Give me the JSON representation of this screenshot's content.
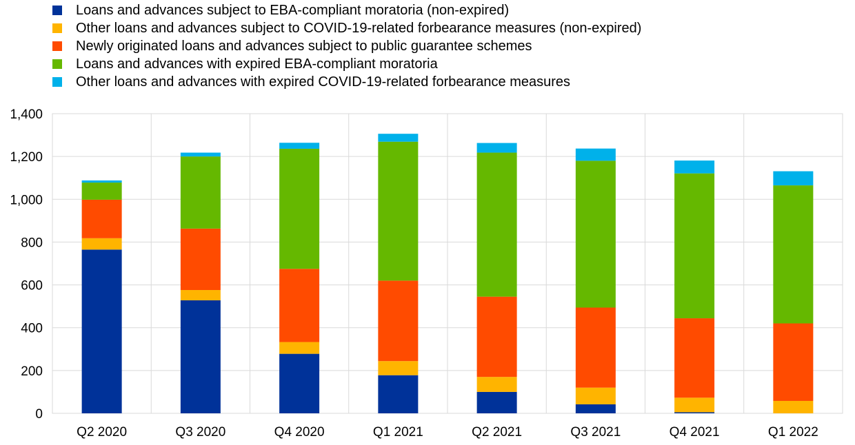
{
  "chart_data": {
    "type": "bar",
    "stacked": true,
    "categories": [
      "Q2 2020",
      "Q3 2020",
      "Q4 2020",
      "Q1 2021",
      "Q2 2021",
      "Q3 2021",
      "Q4 2021",
      "Q1 2022"
    ],
    "series": [
      {
        "name": "Loans and advances subject to EBA-compliant moratoria (non-expired)",
        "color": "#003299",
        "values": [
          765,
          528,
          278,
          178,
          100,
          42,
          5,
          0
        ]
      },
      {
        "name": "Other loans and advances subject to COVID-19-related forbearance measures (non-expired)",
        "color": "#ffb400",
        "values": [
          53,
          48,
          55,
          66,
          70,
          78,
          68,
          58
        ]
      },
      {
        "name": "Newly originated loans and advances subject to public guarantee schemes",
        "color": "#ff4b00",
        "values": [
          180,
          287,
          342,
          376,
          375,
          374,
          371,
          362
        ]
      },
      {
        "name": "Loans and advances with expired EBA-compliant moratoria",
        "color": "#65b800",
        "values": [
          80,
          337,
          561,
          649,
          673,
          686,
          677,
          645
        ]
      },
      {
        "name": "Other loans and advances with expired COVID-19-related forbearance measures",
        "color": "#00b1ea",
        "values": [
          10,
          18,
          28,
          37,
          45,
          57,
          60,
          66
        ]
      }
    ],
    "y_ticks": [
      "0",
      "200",
      "400",
      "600",
      "800",
      "1,000",
      "1,200",
      "1,400"
    ],
    "ylim": [
      0,
      1400
    ],
    "grid": true,
    "legend_position": "top-left"
  }
}
